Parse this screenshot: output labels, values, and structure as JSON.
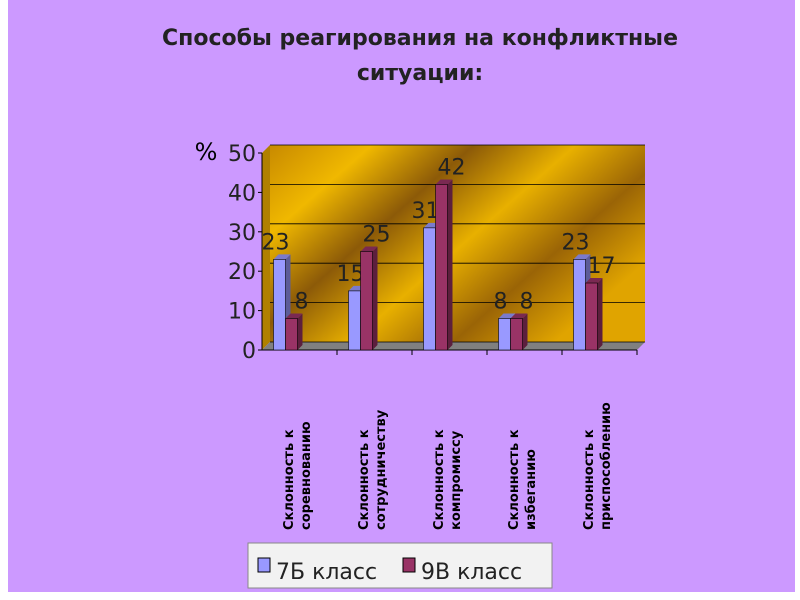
{
  "chart_data": {
    "type": "bar",
    "title": "Способы реагирования на конфликтные",
    "title_line2": "ситуации:",
    "y_label": "%",
    "categories": [
      "Склонность к соревнованию",
      "Склонность к сотрудничеству",
      "Склонность к компромиссу",
      "Склонность к избеганию",
      "Склонность к приспособлению"
    ],
    "series": [
      {
        "name": "7Б класс",
        "color": "#9999ff",
        "values": [
          23,
          15,
          31,
          8,
          23
        ]
      },
      {
        "name": "9В класс",
        "color": "#993366",
        "values": [
          8,
          25,
          42,
          8,
          17
        ]
      }
    ],
    "ylim": [
      0,
      50
    ],
    "yticks": [
      0,
      10,
      20,
      30,
      40,
      50
    ],
    "grid": true
  }
}
